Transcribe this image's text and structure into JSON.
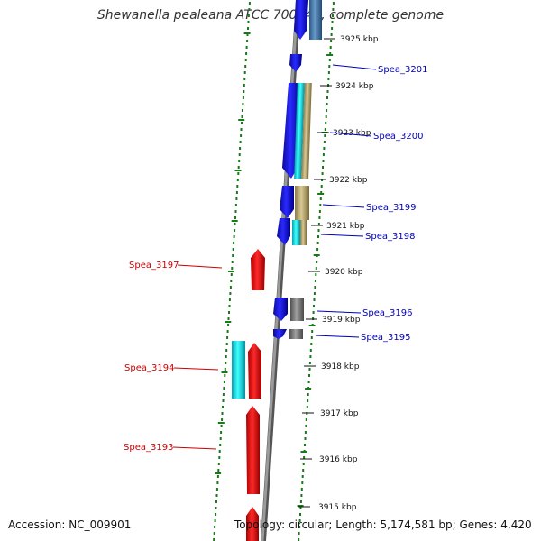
{
  "title": "Shewanella pealeana ATCC 700345, complete genome",
  "accession": "Accession: NC_009901",
  "topology": "Topology: circular; Length: 5,174,581 bp; Genes: 4,420",
  "colors": {
    "forward": "#0000ee",
    "reverse": "#ee0000",
    "cyan": "#00e5f0",
    "tan": "#c2b27a",
    "gray": "#7a7a7a",
    "backbone": "#808080",
    "dots": "#1a7a1a",
    "label_forward": "#0000bb",
    "label_reverse": "#cc0000"
  },
  "ticks": [
    "3925 kbp",
    "3924 kbp",
    "3923 kbp",
    "3922 kbp",
    "3921 kbp",
    "3920 kbp",
    "3919 kbp",
    "3918 kbp",
    "3917 kbp",
    "3916 kbp",
    "3915 kbp"
  ],
  "gene_labels": {
    "spea_3201": "Spea_3201",
    "spea_3200": "Spea_3200",
    "spea_3199": "Spea_3199",
    "spea_3198": "Spea_3198",
    "spea_3197": "Spea_3197",
    "spea_3196": "Spea_3196",
    "spea_3195": "Spea_3195",
    "spea_3194": "Spea_3194",
    "spea_3193": "Spea_3193"
  }
}
